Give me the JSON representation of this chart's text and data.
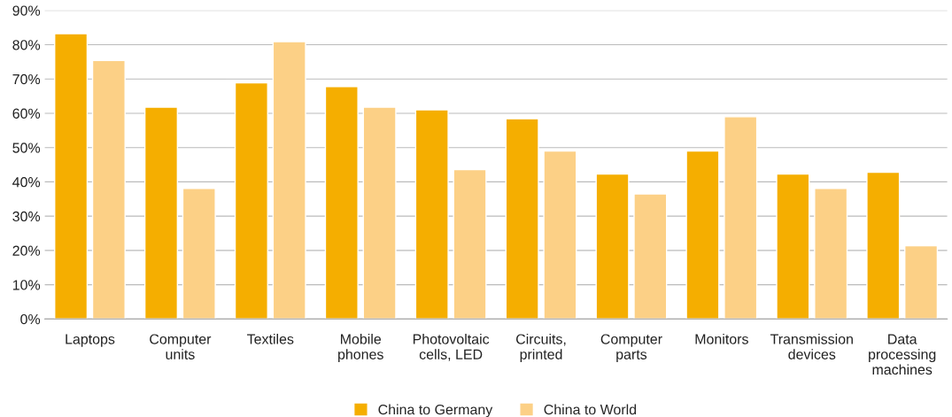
{
  "chart_data": {
    "type": "bar",
    "categories": [
      "Laptops",
      "Computer\nunits",
      "Textiles",
      "Mobile\nphones",
      "Photovoltaic\ncells, LED",
      "Circuits,\nprinted",
      "Computer\nparts",
      "Monitors",
      "Transmission\ndevices",
      "Data\nprocessing\nmachines"
    ],
    "series": [
      {
        "name": "China to Germany",
        "color": "#f5ae00",
        "values": [
          83.2,
          61.8,
          68.9,
          67.8,
          61.0,
          58.4,
          42.3,
          49.0,
          42.3,
          42.8
        ]
      },
      {
        "name": "China to World",
        "color": "#fcd086",
        "values": [
          75.4,
          38.1,
          80.9,
          61.8,
          43.6,
          49.0,
          36.5,
          59.0,
          38.1,
          21.4
        ]
      }
    ],
    "ylim": [
      0,
      90
    ],
    "yticks": [
      {
        "value": 0,
        "label": "0%"
      },
      {
        "value": 10,
        "label": "10%"
      },
      {
        "value": 20,
        "label": "20%"
      },
      {
        "value": 30,
        "label": "30%"
      },
      {
        "value": 40,
        "label": "40%"
      },
      {
        "value": 50,
        "label": "50%"
      },
      {
        "value": 60,
        "label": "60%"
      },
      {
        "value": 70,
        "label": "70%"
      },
      {
        "value": 80,
        "label": "80%"
      },
      {
        "value": 90,
        "label": "90%"
      }
    ],
    "grid": "y",
    "legend": "bottom"
  }
}
